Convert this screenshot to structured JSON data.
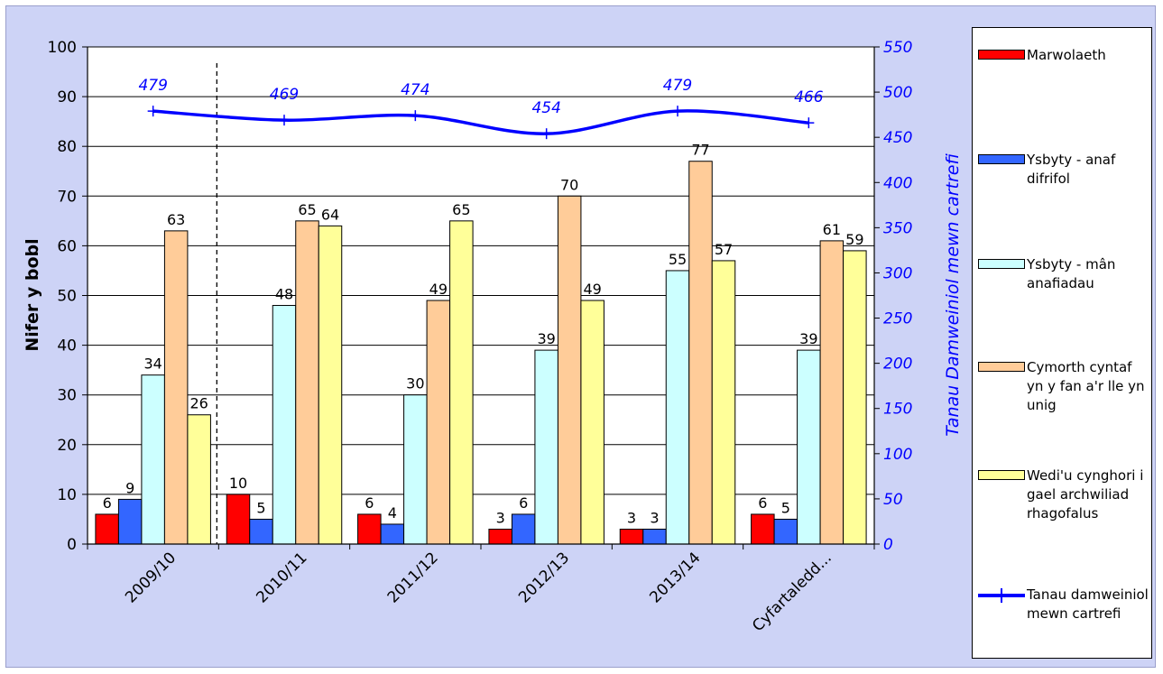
{
  "chart_data": {
    "type": "bar",
    "categories": [
      "2009/10",
      "2010/11",
      "2011/12",
      "2012/13",
      "2013/14",
      "Cyfartaledd..."
    ],
    "ylabel": "Nifer  y bobl",
    "y2label": "Tanau Damweiniol mewn cartrefi",
    "ylim": [
      0,
      100
    ],
    "y2lim": [
      0,
      550
    ],
    "yticks": [
      0,
      10,
      20,
      30,
      40,
      50,
      60,
      70,
      80,
      90,
      100
    ],
    "y2ticks": [
      0,
      50,
      100,
      150,
      200,
      250,
      300,
      350,
      400,
      450,
      500,
      550
    ],
    "grid": true,
    "legend_position": "right",
    "series": [
      {
        "name": "Marwolaeth",
        "color": "#ff0000",
        "values": [
          6,
          10,
          6,
          3,
          3,
          6
        ]
      },
      {
        "name": "Ysbyty - anaf difrifol",
        "color": "#3366ff",
        "values": [
          9,
          5,
          4,
          6,
          3,
          5
        ]
      },
      {
        "name": "Ysbyty - mân anafiadau",
        "color": "#ccffff",
        "values": [
          34,
          48,
          30,
          39,
          55,
          39
        ]
      },
      {
        "name": "Cymorth cyntaf yn y fan a'r lle yn unig",
        "color": "#ffcc99",
        "values": [
          63,
          65,
          49,
          70,
          77,
          61
        ]
      },
      {
        "name": "Wedi'u cynghori i gael archwiliad rhagofalus",
        "color": "#ffff99",
        "values": [
          26,
          64,
          65,
          49,
          57,
          59
        ]
      }
    ],
    "line_series": {
      "name": "Tanau damweiniol mewn cartrefi",
      "color": "#0000ff",
      "axis": "secondary",
      "values": [
        479,
        469,
        474,
        454,
        479,
        466
      ]
    },
    "annotations": {
      "dashed_divider_after_category": "2009/10"
    }
  }
}
